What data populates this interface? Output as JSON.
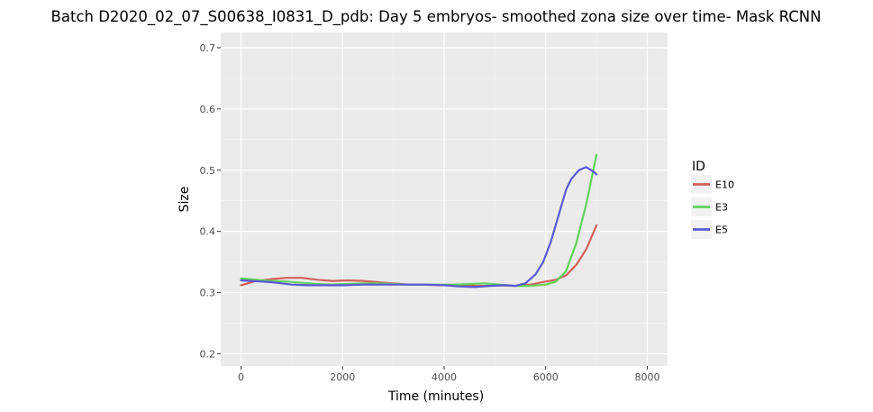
{
  "chart_data": {
    "type": "line",
    "title": "Batch D2020_02_07_S00638_I0831_D_pdb: Day 5 embryos- smoothed zona size over time- Mask RCNN",
    "xlabel": "Time (minutes)",
    "ylabel": "Size",
    "xlim": [
      -400,
      8400
    ],
    "ylim": [
      0.18,
      0.725
    ],
    "x_ticks": [
      0,
      2000,
      4000,
      6000,
      8000
    ],
    "y_ticks": [
      0.2,
      0.3,
      0.4,
      0.5,
      0.6,
      0.7
    ],
    "grid": true,
    "legend": {
      "title": "ID",
      "placement": "right"
    },
    "series": [
      {
        "name": "E10",
        "color": "#d1605a",
        "x": [
          0,
          300,
          600,
          900,
          1200,
          1500,
          1800,
          2100,
          2400,
          2700,
          3000,
          3300,
          3600,
          3900,
          4200,
          4500,
          4800,
          5100,
          5400,
          5700,
          6000,
          6200,
          6400,
          6600,
          6800,
          7000
        ],
        "y": [
          0.312,
          0.319,
          0.322,
          0.324,
          0.324,
          0.321,
          0.319,
          0.32,
          0.319,
          0.317,
          0.315,
          0.313,
          0.313,
          0.312,
          0.312,
          0.311,
          0.311,
          0.312,
          0.311,
          0.313,
          0.318,
          0.321,
          0.328,
          0.345,
          0.371,
          0.41
        ]
      },
      {
        "name": "E3",
        "color": "#5fd35a",
        "x": [
          0,
          300,
          600,
          900,
          1200,
          1500,
          1800,
          2100,
          2400,
          2700,
          3000,
          3300,
          3600,
          3900,
          4200,
          4500,
          4800,
          5100,
          5400,
          5700,
          6000,
          6200,
          6400,
          6600,
          6800,
          7000
        ],
        "y": [
          0.323,
          0.321,
          0.319,
          0.318,
          0.316,
          0.314,
          0.313,
          0.314,
          0.315,
          0.315,
          0.314,
          0.313,
          0.313,
          0.313,
          0.313,
          0.314,
          0.315,
          0.313,
          0.311,
          0.311,
          0.313,
          0.318,
          0.335,
          0.38,
          0.445,
          0.525
        ]
      },
      {
        "name": "E5",
        "color": "#5b57d6",
        "x": [
          0,
          200,
          400,
          600,
          800,
          1000,
          1300,
          1600,
          2000,
          2400,
          2800,
          3200,
          3600,
          4000,
          4300,
          4600,
          4900,
          5200,
          5400,
          5600,
          5800,
          5950,
          6100,
          6250,
          6400,
          6500,
          6650,
          6800,
          6950,
          7000
        ],
        "y": [
          0.32,
          0.319,
          0.318,
          0.317,
          0.315,
          0.313,
          0.312,
          0.312,
          0.312,
          0.313,
          0.313,
          0.313,
          0.313,
          0.312,
          0.31,
          0.309,
          0.311,
          0.312,
          0.311,
          0.315,
          0.33,
          0.35,
          0.383,
          0.425,
          0.468,
          0.485,
          0.5,
          0.505,
          0.497,
          0.493
        ]
      }
    ]
  }
}
